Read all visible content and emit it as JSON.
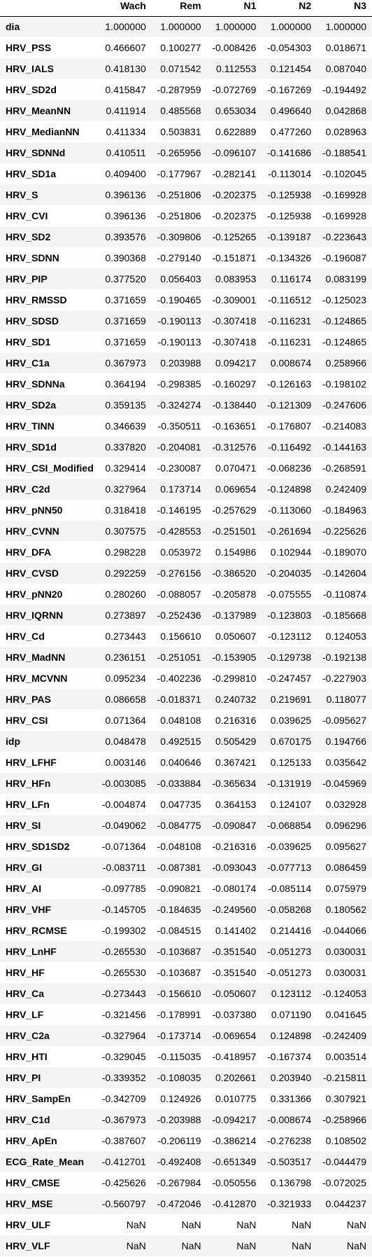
{
  "table": {
    "columns": [
      "",
      "Wach",
      "Rem",
      "N1",
      "N2",
      "N3"
    ],
    "rows": [
      [
        "dia",
        "1.000000",
        "1.000000",
        "1.000000",
        "1.000000",
        "1.000000"
      ],
      [
        "HRV_PSS",
        "0.466607",
        "0.100277",
        "-0.008426",
        "-0.054303",
        "0.018671"
      ],
      [
        "HRV_IALS",
        "0.418130",
        "0.071542",
        "0.112553",
        "0.121454",
        "0.087040"
      ],
      [
        "HRV_SD2d",
        "0.415847",
        "-0.287959",
        "-0.072769",
        "-0.167269",
        "-0.194492"
      ],
      [
        "HRV_MeanNN",
        "0.411914",
        "0.485568",
        "0.653034",
        "0.496640",
        "0.042868"
      ],
      [
        "HRV_MedianNN",
        "0.411334",
        "0.503831",
        "0.622889",
        "0.477260",
        "0.028963"
      ],
      [
        "HRV_SDNNd",
        "0.410511",
        "-0.265956",
        "-0.096107",
        "-0.141686",
        "-0.188541"
      ],
      [
        "HRV_SD1a",
        "0.409400",
        "-0.177967",
        "-0.282141",
        "-0.113014",
        "-0.102045"
      ],
      [
        "HRV_S",
        "0.396136",
        "-0.251806",
        "-0.202375",
        "-0.125938",
        "-0.169928"
      ],
      [
        "HRV_CVI",
        "0.396136",
        "-0.251806",
        "-0.202375",
        "-0.125938",
        "-0.169928"
      ],
      [
        "HRV_SD2",
        "0.393576",
        "-0.309806",
        "-0.125265",
        "-0.139187",
        "-0.223643"
      ],
      [
        "HRV_SDNN",
        "0.390368",
        "-0.279140",
        "-0.151871",
        "-0.134326",
        "-0.196087"
      ],
      [
        "HRV_PIP",
        "0.377520",
        "0.056403",
        "0.083953",
        "0.116174",
        "0.083199"
      ],
      [
        "HRV_RMSSD",
        "0.371659",
        "-0.190465",
        "-0.309001",
        "-0.116512",
        "-0.125023"
      ],
      [
        "HRV_SDSD",
        "0.371659",
        "-0.190113",
        "-0.307418",
        "-0.116231",
        "-0.124865"
      ],
      [
        "HRV_SD1",
        "0.371659",
        "-0.190113",
        "-0.307418",
        "-0.116231",
        "-0.124865"
      ],
      [
        "HRV_C1a",
        "0.367973",
        "0.203988",
        "0.094217",
        "0.008674",
        "0.258966"
      ],
      [
        "HRV_SDNNa",
        "0.364194",
        "-0.298385",
        "-0.160297",
        "-0.126163",
        "-0.198102"
      ],
      [
        "HRV_SD2a",
        "0.359135",
        "-0.324274",
        "-0.138440",
        "-0.121309",
        "-0.247606"
      ],
      [
        "HRV_TINN",
        "0.346639",
        "-0.350511",
        "-0.163651",
        "-0.176807",
        "-0.214083"
      ],
      [
        "HRV_SD1d",
        "0.337820",
        "-0.204081",
        "-0.312576",
        "-0.116492",
        "-0.144163"
      ],
      [
        "HRV_CSI_Modified",
        "0.329414",
        "-0.230087",
        "0.070471",
        "-0.068236",
        "-0.268591"
      ],
      [
        "HRV_C2d",
        "0.327964",
        "0.173714",
        "0.069654",
        "-0.124898",
        "0.242409"
      ],
      [
        "HRV_pNN50",
        "0.318418",
        "-0.146195",
        "-0.257629",
        "-0.113060",
        "-0.184963"
      ],
      [
        "HRV_CVNN",
        "0.307575",
        "-0.428553",
        "-0.251501",
        "-0.261694",
        "-0.225626"
      ],
      [
        "HRV_DFA",
        "0.298228",
        "0.053972",
        "0.154986",
        "0.102944",
        "-0.189070"
      ],
      [
        "HRV_CVSD",
        "0.292259",
        "-0.276156",
        "-0.386520",
        "-0.204035",
        "-0.142604"
      ],
      [
        "HRV_pNN20",
        "0.280260",
        "-0.088057",
        "-0.205878",
        "-0.075555",
        "-0.110874"
      ],
      [
        "HRV_IQRNN",
        "0.273897",
        "-0.252436",
        "-0.137989",
        "-0.123803",
        "-0.185668"
      ],
      [
        "HRV_Cd",
        "0.273443",
        "0.156610",
        "0.050607",
        "-0.123112",
        "0.124053"
      ],
      [
        "HRV_MadNN",
        "0.236151",
        "-0.251051",
        "-0.153905",
        "-0.129738",
        "-0.192138"
      ],
      [
        "HRV_MCVNN",
        "0.095234",
        "-0.402236",
        "-0.299810",
        "-0.247457",
        "-0.227903"
      ],
      [
        "HRV_PAS",
        "0.086658",
        "-0.018371",
        "0.240732",
        "0.219691",
        "0.118077"
      ],
      [
        "HRV_CSI",
        "0.071364",
        "0.048108",
        "0.216316",
        "0.039625",
        "-0.095627"
      ],
      [
        "idp",
        "0.048478",
        "0.492515",
        "0.505429",
        "0.670175",
        "0.194766"
      ],
      [
        "HRV_LFHF",
        "0.003146",
        "0.040646",
        "0.367421",
        "0.125133",
        "0.035642"
      ],
      [
        "HRV_HFn",
        "-0.003085",
        "-0.033884",
        "-0.365634",
        "-0.131919",
        "-0.045969"
      ],
      [
        "HRV_LFn",
        "-0.004874",
        "0.047735",
        "0.364153",
        "0.124107",
        "0.032928"
      ],
      [
        "HRV_SI",
        "-0.049062",
        "-0.084775",
        "-0.090847",
        "-0.068854",
        "0.096296"
      ],
      [
        "HRV_SD1SD2",
        "-0.071364",
        "-0.048108",
        "-0.216316",
        "-0.039625",
        "0.095627"
      ],
      [
        "HRV_GI",
        "-0.083711",
        "-0.087381",
        "-0.093043",
        "-0.077713",
        "0.086459"
      ],
      [
        "HRV_AI",
        "-0.097785",
        "-0.090821",
        "-0.080174",
        "-0.085114",
        "0.075979"
      ],
      [
        "HRV_VHF",
        "-0.145705",
        "-0.184635",
        "-0.249560",
        "-0.058268",
        "0.180562"
      ],
      [
        "HRV_RCMSE",
        "-0.199302",
        "-0.084515",
        "0.141402",
        "0.214416",
        "-0.044066"
      ],
      [
        "HRV_LnHF",
        "-0.265530",
        "-0.103687",
        "-0.351540",
        "-0.051273",
        "0.030031"
      ],
      [
        "HRV_HF",
        "-0.265530",
        "-0.103687",
        "-0.351540",
        "-0.051273",
        "0.030031"
      ],
      [
        "HRV_Ca",
        "-0.273443",
        "-0.156610",
        "-0.050607",
        "0.123112",
        "-0.124053"
      ],
      [
        "HRV_LF",
        "-0.321456",
        "-0.178991",
        "-0.037380",
        "0.071190",
        "0.041645"
      ],
      [
        "HRV_C2a",
        "-0.327964",
        "-0.173714",
        "-0.069654",
        "0.124898",
        "-0.242409"
      ],
      [
        "HRV_HTI",
        "-0.329045",
        "-0.115035",
        "-0.418957",
        "-0.167374",
        "0.003514"
      ],
      [
        "HRV_PI",
        "-0.339352",
        "-0.108035",
        "0.202661",
        "0.203940",
        "-0.215811"
      ],
      [
        "HRV_SampEn",
        "-0.342709",
        "0.124926",
        "0.010775",
        "0.331366",
        "0.307921"
      ],
      [
        "HRV_C1d",
        "-0.367973",
        "-0.203988",
        "-0.094217",
        "-0.008674",
        "-0.258966"
      ],
      [
        "HRV_ApEn",
        "-0.387607",
        "-0.206119",
        "-0.386214",
        "-0.276238",
        "0.108502"
      ],
      [
        "ECG_Rate_Mean",
        "-0.412701",
        "-0.492408",
        "-0.651349",
        "-0.503517",
        "-0.044479"
      ],
      [
        "HRV_CMSE",
        "-0.425626",
        "-0.267984",
        "-0.050556",
        "0.136798",
        "-0.072025"
      ],
      [
        "HRV_MSE",
        "-0.560797",
        "-0.472046",
        "-0.412870",
        "-0.321933",
        "0.044237"
      ],
      [
        "HRV_ULF",
        "NaN",
        "NaN",
        "NaN",
        "NaN",
        "NaN"
      ],
      [
        "HRV_VLF",
        "NaN",
        "NaN",
        "NaN",
        "NaN",
        "NaN"
      ]
    ]
  }
}
